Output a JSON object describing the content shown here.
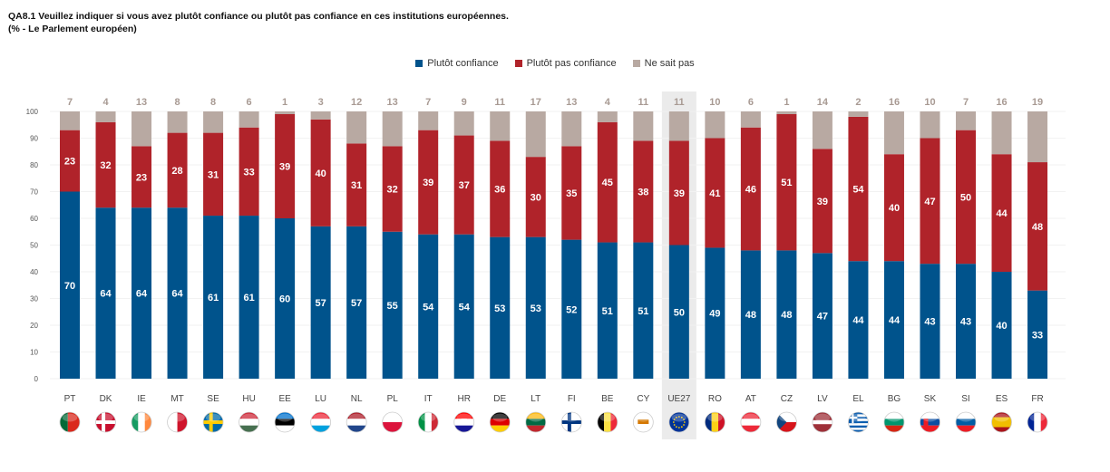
{
  "header": {
    "title_line1": "QA8.1 Veuillez indiquer si vous avez plutôt confiance ou plutôt pas confiance en ces institutions européennes.",
    "title_line2": "(%  - Le Parlement européen)"
  },
  "chart_data": {
    "type": "bar",
    "stacked": true,
    "title": "QA8.1 Veuillez indiquer si vous avez plutôt confiance ou plutôt pas confiance en ces institutions européennes.",
    "subtitle": "(%  - Le Parlement européen)",
    "xlabel": "",
    "ylabel": "",
    "ylim": [
      0,
      100
    ],
    "yticks": [
      0,
      10,
      20,
      30,
      40,
      50,
      60,
      70,
      80,
      90,
      100
    ],
    "grid": true,
    "legend_position": "top-center",
    "highlight_category": "UE27",
    "categories": [
      "PT",
      "DK",
      "IE",
      "MT",
      "SE",
      "HU",
      "EE",
      "LU",
      "NL",
      "PL",
      "IT",
      "HR",
      "DE",
      "LT",
      "FI",
      "BE",
      "CY",
      "UE27",
      "RO",
      "AT",
      "CZ",
      "LV",
      "EL",
      "BG",
      "SK",
      "SI",
      "ES",
      "FR"
    ],
    "series": [
      {
        "name": "Plutôt confiance",
        "color": "#00538C",
        "values": [
          70,
          64,
          64,
          64,
          61,
          61,
          60,
          57,
          57,
          55,
          54,
          54,
          53,
          53,
          52,
          51,
          51,
          50,
          49,
          48,
          48,
          47,
          44,
          44,
          43,
          43,
          40,
          33
        ]
      },
      {
        "name": "Plutôt pas confiance",
        "color": "#B0232A",
        "values": [
          23,
          32,
          23,
          28,
          31,
          33,
          39,
          40,
          31,
          32,
          39,
          37,
          36,
          30,
          35,
          45,
          38,
          39,
          41,
          46,
          51,
          39,
          54,
          40,
          47,
          50,
          44,
          48
        ]
      },
      {
        "name": "Ne sait pas",
        "color": "#B8A9A2",
        "values": [
          7,
          4,
          13,
          8,
          8,
          6,
          1,
          3,
          12,
          13,
          7,
          9,
          11,
          17,
          13,
          4,
          11,
          11,
          10,
          6,
          1,
          14,
          2,
          16,
          10,
          7,
          16,
          19
        ]
      }
    ],
    "flags": [
      "portugal-flag",
      "denmark-flag",
      "ireland-flag",
      "malta-flag",
      "sweden-flag",
      "hungary-flag",
      "estonia-flag",
      "luxembourg-flag",
      "netherlands-flag",
      "poland-flag",
      "italy-flag",
      "croatia-flag",
      "germany-flag",
      "lithuania-flag",
      "finland-flag",
      "belgium-flag",
      "cyprus-flag",
      "eu-flag",
      "romania-flag",
      "austria-flag",
      "czechia-flag",
      "latvia-flag",
      "greece-flag",
      "bulgaria-flag",
      "slovakia-flag",
      "slovenia-flag",
      "spain-flag",
      "france-flag"
    ]
  }
}
